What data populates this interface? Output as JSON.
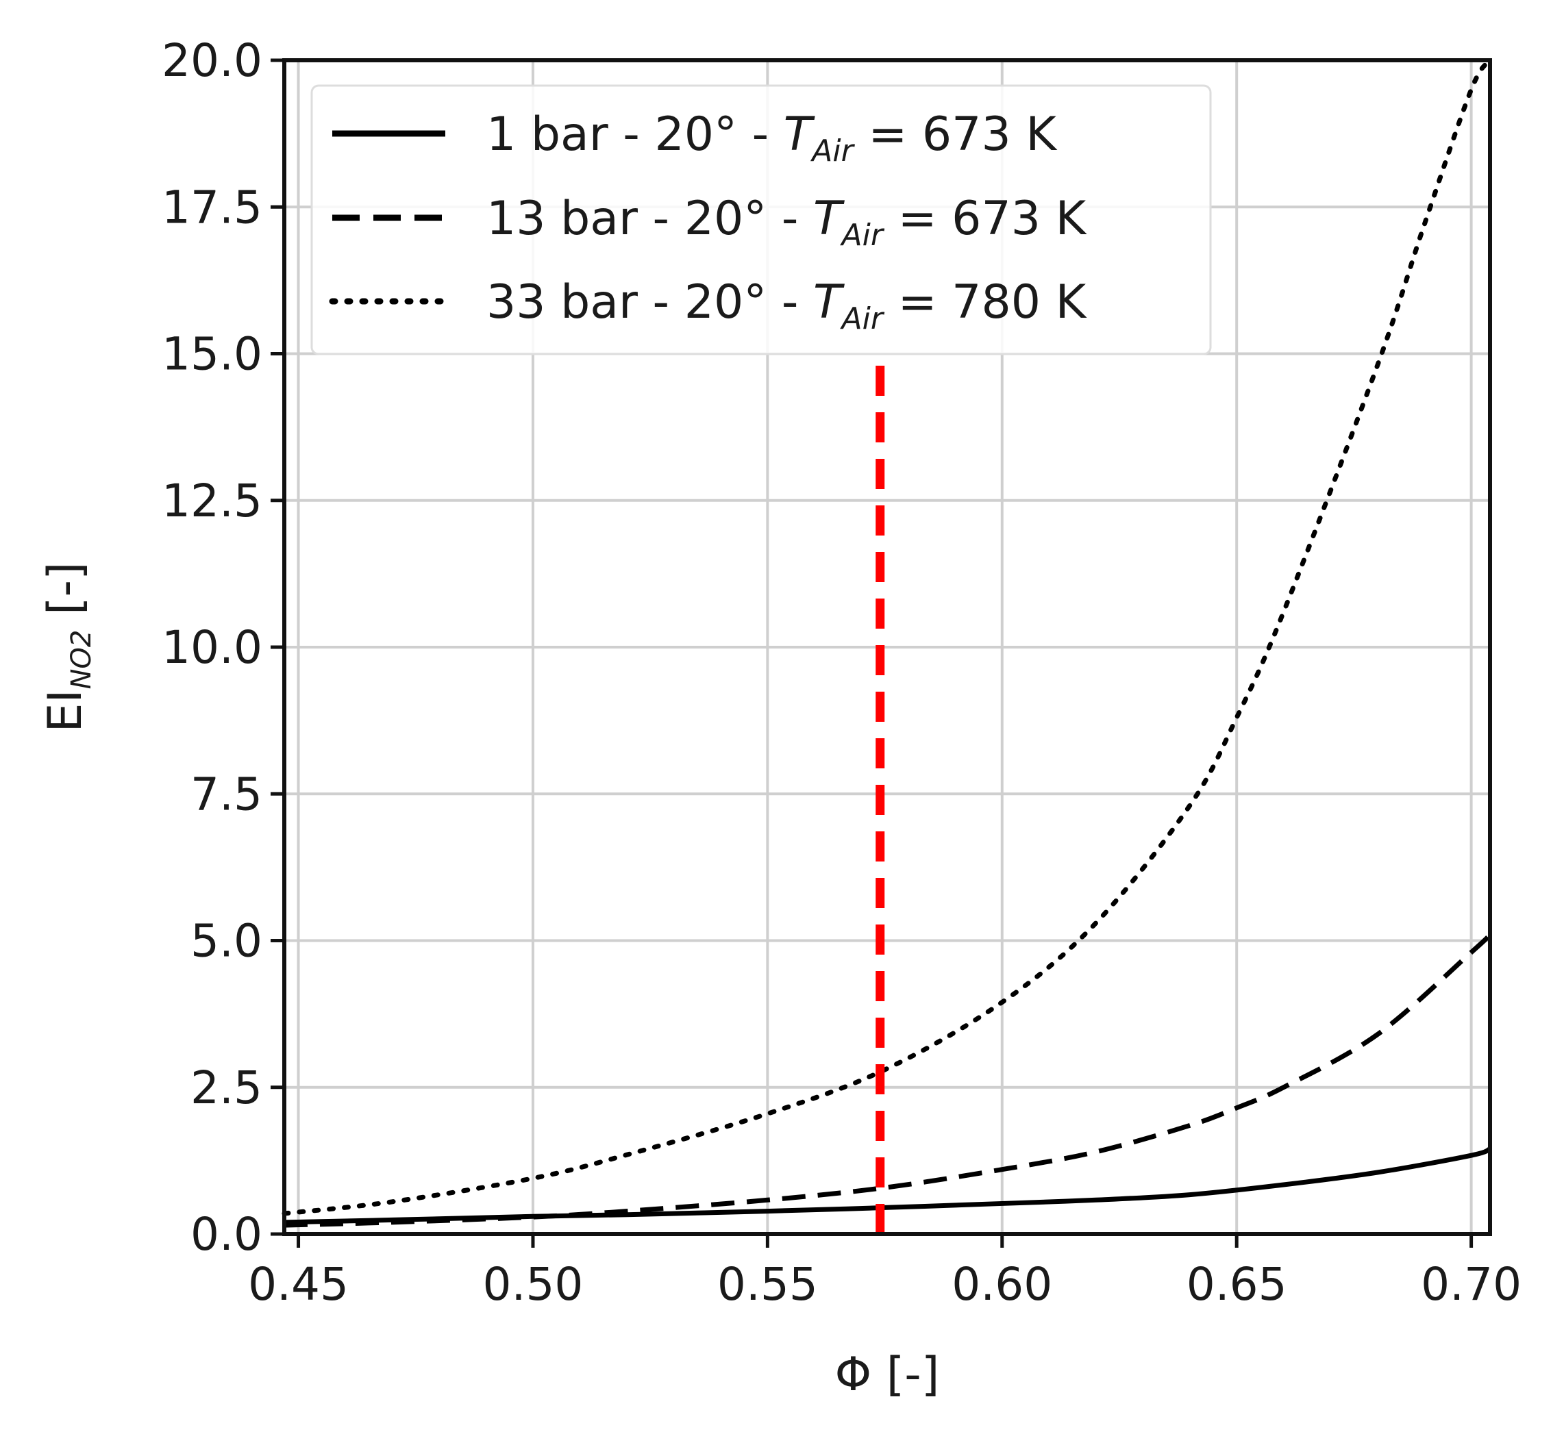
{
  "chart_data": {
    "type": "line",
    "xlabel": "Φ [-]",
    "ylabel": "EI",
    "ylabel_subscript": "NO2",
    "ylabel_unit": " [-]",
    "xlim": [
      0.447,
      0.704
    ],
    "ylim": [
      0,
      20
    ],
    "xticks": [
      0.45,
      0.5,
      0.55,
      0.6,
      0.65,
      0.7
    ],
    "xtick_labels": [
      "0.45",
      "0.50",
      "0.55",
      "0.60",
      "0.65",
      "0.70"
    ],
    "yticks": [
      0,
      2.5,
      5,
      7.5,
      10,
      12.5,
      15,
      17.5,
      20
    ],
    "ytick_labels": [
      "0.0",
      "2.5",
      "5.0",
      "7.5",
      "10.0",
      "12.5",
      "15.0",
      "17.5",
      "20.0"
    ],
    "grid": true,
    "legend_position": "top-left",
    "series": [
      {
        "name": "1 bar   - 20° - T_Air = 673 K",
        "legend_main": "1 bar   - 20° - ",
        "legend_var": "T",
        "legend_sub": "Air",
        "legend_rest": " = 673 K",
        "style": "solid",
        "color": "#000000",
        "x": [
          0.447,
          0.47,
          0.5,
          0.52,
          0.55,
          0.575,
          0.6,
          0.62,
          0.64,
          0.66,
          0.68,
          0.7,
          0.704
        ],
        "y": [
          0.2,
          0.24,
          0.3,
          0.33,
          0.39,
          0.45,
          0.52,
          0.58,
          0.67,
          0.84,
          1.05,
          1.34,
          1.45
        ]
      },
      {
        "name": "13 bar - 20° - T_Air = 673 K",
        "legend_main": "13 bar - 20° - ",
        "legend_var": "T",
        "legend_sub": "Air",
        "legend_rest": " = 673 K",
        "style": "dashed",
        "color": "#000000",
        "x": [
          0.447,
          0.47,
          0.5,
          0.52,
          0.55,
          0.575,
          0.6,
          0.62,
          0.64,
          0.65,
          0.66,
          0.68,
          0.7,
          0.704
        ],
        "y": [
          0.15,
          0.2,
          0.29,
          0.39,
          0.58,
          0.79,
          1.1,
          1.4,
          1.85,
          2.15,
          2.5,
          3.4,
          4.8,
          5.1
        ]
      },
      {
        "name": "33 bar - 20° - T_Air = 780 K",
        "legend_main": "33 bar - 20° - ",
        "legend_var": "T",
        "legend_sub": "Air",
        "legend_rest": " = 780 K",
        "style": "dotted",
        "color": "#000000",
        "x": [
          0.447,
          0.47,
          0.5,
          0.52,
          0.55,
          0.575,
          0.6,
          0.62,
          0.64,
          0.65,
          0.66,
          0.68,
          0.69,
          0.7,
          0.704
        ],
        "y": [
          0.35,
          0.55,
          0.95,
          1.35,
          2.05,
          2.8,
          3.95,
          5.3,
          7.3,
          8.8,
          10.6,
          14.8,
          17.2,
          19.5,
          20.0
        ]
      }
    ],
    "annotations": [
      {
        "type": "vline",
        "x": 0.574,
        "y_range": [
          0,
          14.8
        ],
        "style": "dashed",
        "color": "#ff0000"
      }
    ]
  }
}
